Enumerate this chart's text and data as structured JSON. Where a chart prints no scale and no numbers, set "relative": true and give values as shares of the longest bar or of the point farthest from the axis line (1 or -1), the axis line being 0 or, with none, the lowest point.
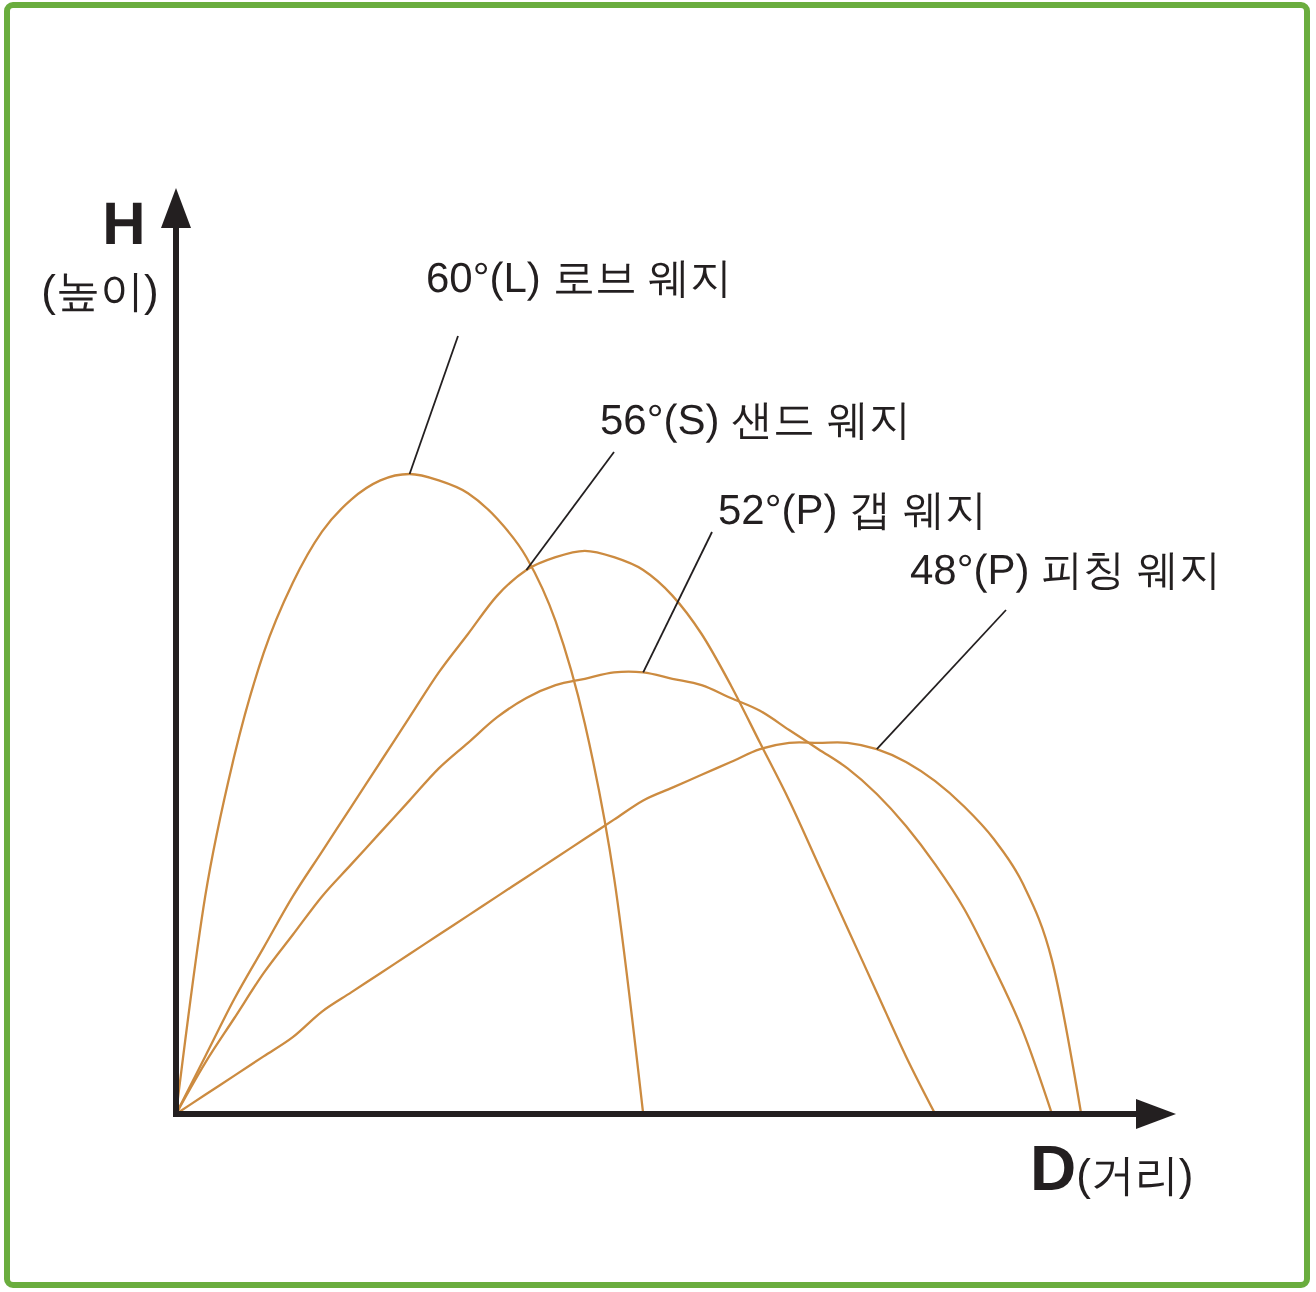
{
  "chart_data": {
    "type": "line",
    "relative": true,
    "xlabel": "D(거리)",
    "ylabel": "H\n(높이)",
    "categories": [
      null,
      null,
      null,
      null,
      null,
      null,
      null,
      null,
      null,
      null,
      null,
      null,
      null,
      null,
      null,
      null,
      null,
      null,
      null,
      null,
      null,
      null,
      null,
      null,
      null,
      null,
      null,
      null,
      null,
      null,
      null,
      null,
      null,
      null,
      null
    ],
    "series": [
      {
        "name": "60°(L) 로브 웨지",
        "color": "#cc8b40",
        "values": [
          0,
          0.34,
          0.56,
          0.72,
          0.83,
          0.91,
          0.96,
          0.99,
          1.0,
          0.99,
          0.97,
          0.93,
          0.87,
          0.77,
          0.61,
          0.37,
          0,
          null,
          null,
          null,
          null,
          null,
          null,
          null,
          null,
          null,
          null,
          null,
          null,
          null,
          null,
          null,
          null,
          null,
          null
        ]
      },
      {
        "name": "56°(S) 샌드 웨지",
        "color": "#cc8b40",
        "values": [
          0,
          0.09,
          0.18,
          0.26,
          0.34,
          0.41,
          0.48,
          0.55,
          0.62,
          0.69,
          0.75,
          0.81,
          0.85,
          0.87,
          0.88,
          0.87,
          0.85,
          0.81,
          0.75,
          0.67,
          0.58,
          0.49,
          0.39,
          0.29,
          0.19,
          0.09,
          0,
          null,
          null,
          null,
          null,
          null,
          null,
          null,
          null
        ]
      },
      {
        "name": "52°(P) 갭 웨지",
        "color": "#cc8b40",
        "values": [
          0,
          0.08,
          0.15,
          0.22,
          0.28,
          0.34,
          0.39,
          0.44,
          0.49,
          0.54,
          0.58,
          0.62,
          0.65,
          0.67,
          0.68,
          0.69,
          0.69,
          0.68,
          0.67,
          0.65,
          0.63,
          0.6,
          0.57,
          0.54,
          0.5,
          0.45,
          0.39,
          0.32,
          0.23,
          0.13,
          0,
          null,
          null,
          null,
          null
        ]
      },
      {
        "name": "48°(P) 피칭 웨지",
        "color": "#cc8b40",
        "values": [
          0,
          0.03,
          0.06,
          0.09,
          0.12,
          0.16,
          0.19,
          0.22,
          0.25,
          0.28,
          0.31,
          0.34,
          0.37,
          0.4,
          0.43,
          0.46,
          0.49,
          0.51,
          0.53,
          0.55,
          0.57,
          0.58,
          0.58,
          0.58,
          0.57,
          0.55,
          0.52,
          0.48,
          0.43,
          0.36,
          0.24,
          0,
          null,
          null,
          null
        ]
      }
    ]
  }
}
